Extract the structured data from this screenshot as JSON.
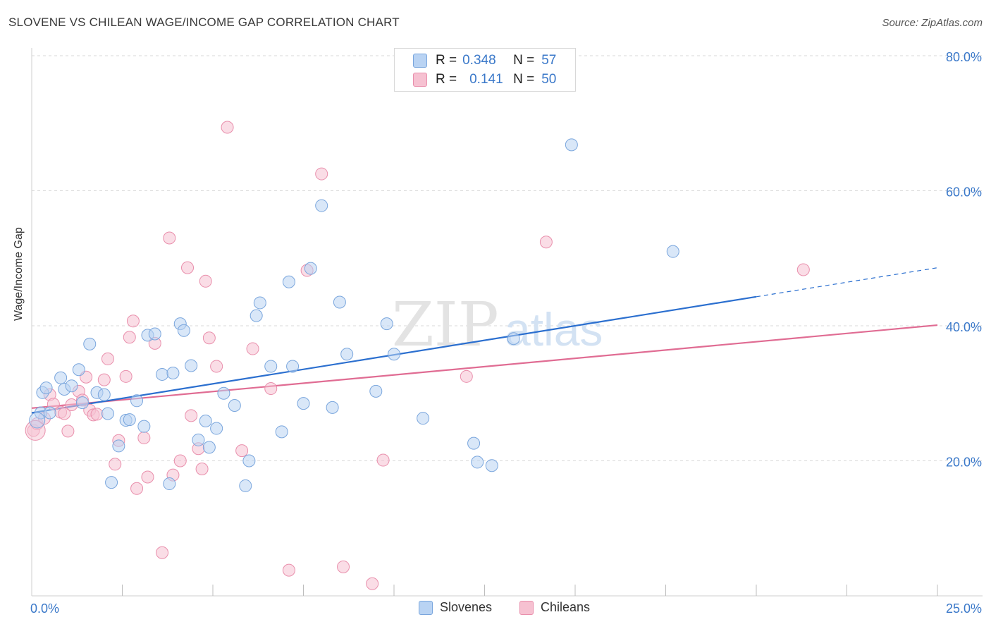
{
  "title": "SLOVENE VS CHILEAN WAGE/INCOME GAP CORRELATION CHART",
  "source": "Source: ZipAtlas.com",
  "watermark": {
    "zip": "ZIP",
    "atlas": "atlas"
  },
  "legend": {
    "r_label": "R =",
    "n_label": "N =",
    "rows": [
      {
        "name": "Slovenes",
        "r": "0.348",
        "n": "57"
      },
      {
        "name": "Chileans",
        "r": "0.141",
        "n": "50"
      }
    ]
  },
  "colors": {
    "slovenes_fill": "#b9d3f3",
    "slovenes_stroke": "#7aa6dd",
    "slovenes_line": "#2b6fcf",
    "chileans_fill": "#f6c1d1",
    "chileans_stroke": "#e98fac",
    "chileans_line": "#e06c93",
    "axis_label": "#3a78c9",
    "grid": "#d9d9d9"
  },
  "chart_data": {
    "type": "scatter",
    "title": "SLOVENE VS CHILEAN WAGE/INCOME GAP CORRELATION CHART",
    "xlabel": "",
    "ylabel": "Wage/Income Gap",
    "xlim": [
      0,
      25
    ],
    "ylim": [
      0,
      80
    ],
    "x_tick_labels": [
      "0.0%",
      "25.0%"
    ],
    "y_ticks": [
      20,
      40,
      60,
      80
    ],
    "y_tick_labels": [
      "20.0%",
      "40.0%",
      "60.0%",
      "80.0%"
    ],
    "legend_position": "top-center",
    "series": [
      {
        "name": "Slovenes",
        "r": 0.348,
        "n": 57,
        "trend": {
          "x0": 0,
          "y0": 27.1,
          "x1": 20,
          "y1": 44.3,
          "dash_to_x": 25,
          "dash_to_y": 48.6
        },
        "points": [
          [
            0.25,
            27.1
          ],
          [
            0.3,
            30.1
          ],
          [
            0.4,
            30.8
          ],
          [
            0.5,
            27.1
          ],
          [
            0.8,
            32.3
          ],
          [
            0.9,
            30.6
          ],
          [
            1.1,
            31.1
          ],
          [
            1.3,
            33.5
          ],
          [
            1.4,
            28.6
          ],
          [
            1.6,
            37.3
          ],
          [
            1.8,
            30.1
          ],
          [
            2.0,
            29.8
          ],
          [
            2.1,
            27.0
          ],
          [
            2.2,
            16.8
          ],
          [
            2.4,
            22.2
          ],
          [
            2.6,
            26.0
          ],
          [
            2.7,
            26.1
          ],
          [
            2.9,
            28.9
          ],
          [
            3.1,
            25.1
          ],
          [
            3.2,
            38.6
          ],
          [
            3.4,
            38.8
          ],
          [
            3.6,
            32.8
          ],
          [
            3.8,
            16.6
          ],
          [
            3.9,
            33.0
          ],
          [
            4.1,
            40.3
          ],
          [
            4.2,
            39.3
          ],
          [
            4.4,
            34.1
          ],
          [
            4.6,
            23.1
          ],
          [
            4.8,
            25.9
          ],
          [
            4.9,
            22.0
          ],
          [
            5.1,
            24.8
          ],
          [
            5.3,
            30.0
          ],
          [
            5.6,
            28.2
          ],
          [
            5.9,
            16.3
          ],
          [
            6.0,
            20.0
          ],
          [
            6.2,
            41.5
          ],
          [
            6.3,
            43.4
          ],
          [
            6.6,
            34.0
          ],
          [
            6.9,
            24.3
          ],
          [
            7.1,
            46.5
          ],
          [
            7.2,
            34.0
          ],
          [
            7.5,
            28.5
          ],
          [
            7.7,
            48.5
          ],
          [
            8.0,
            57.8
          ],
          [
            8.3,
            27.9
          ],
          [
            8.5,
            43.5
          ],
          [
            8.7,
            35.8
          ],
          [
            9.5,
            30.3
          ],
          [
            9.8,
            40.3
          ],
          [
            10.0,
            35.8
          ],
          [
            10.8,
            26.3
          ],
          [
            12.2,
            22.6
          ],
          [
            12.3,
            19.8
          ],
          [
            12.7,
            19.3
          ],
          [
            13.3,
            38.1
          ],
          [
            14.9,
            66.8
          ],
          [
            17.7,
            51.0
          ]
        ]
      },
      {
        "name": "Chileans",
        "r": 0.141,
        "n": 50,
        "trend": {
          "x0": 0,
          "y0": 27.8,
          "x1": 25,
          "y1": 40.1
        },
        "points": [
          [
            0.05,
            24.5
          ],
          [
            0.15,
            25.5
          ],
          [
            0.35,
            26.3
          ],
          [
            0.5,
            29.8
          ],
          [
            0.6,
            28.4
          ],
          [
            0.8,
            27.2
          ],
          [
            0.9,
            27.0
          ],
          [
            1.0,
            24.4
          ],
          [
            1.1,
            28.3
          ],
          [
            1.3,
            30.3
          ],
          [
            1.4,
            29.0
          ],
          [
            1.5,
            32.4
          ],
          [
            1.6,
            27.5
          ],
          [
            1.7,
            26.8
          ],
          [
            1.8,
            26.9
          ],
          [
            2.0,
            32.0
          ],
          [
            2.1,
            35.1
          ],
          [
            2.3,
            19.5
          ],
          [
            2.4,
            23.0
          ],
          [
            2.6,
            32.5
          ],
          [
            2.7,
            38.3
          ],
          [
            2.8,
            40.7
          ],
          [
            2.9,
            15.9
          ],
          [
            3.1,
            23.4
          ],
          [
            3.2,
            17.6
          ],
          [
            3.4,
            37.4
          ],
          [
            3.6,
            6.4
          ],
          [
            3.8,
            53.0
          ],
          [
            3.9,
            17.9
          ],
          [
            4.1,
            20.0
          ],
          [
            4.3,
            48.6
          ],
          [
            4.4,
            26.7
          ],
          [
            4.6,
            21.8
          ],
          [
            4.7,
            18.8
          ],
          [
            4.8,
            46.6
          ],
          [
            4.9,
            38.2
          ],
          [
            5.1,
            34.0
          ],
          [
            5.4,
            69.4
          ],
          [
            5.8,
            21.5
          ],
          [
            6.1,
            36.6
          ],
          [
            6.6,
            30.7
          ],
          [
            7.1,
            3.8
          ],
          [
            7.6,
            48.2
          ],
          [
            8.0,
            62.5
          ],
          [
            8.6,
            4.3
          ],
          [
            9.4,
            1.8
          ],
          [
            9.7,
            20.1
          ],
          [
            12.0,
            32.5
          ],
          [
            14.2,
            52.4
          ],
          [
            21.3,
            48.3
          ]
        ]
      }
    ]
  }
}
